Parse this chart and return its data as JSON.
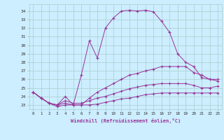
{
  "xlabel": "Windchill (Refroidissement éolien,°C)",
  "bg_color": "#cceeff",
  "grid_color": "#aacccc",
  "line_color": "#993399",
  "xlim": [
    -0.5,
    23.5
  ],
  "ylim": [
    22.5,
    34.8
  ],
  "xticks": [
    0,
    1,
    2,
    3,
    4,
    5,
    6,
    7,
    8,
    9,
    10,
    11,
    12,
    13,
    14,
    15,
    16,
    17,
    18,
    19,
    20,
    21,
    22,
    23
  ],
  "yticks": [
    23,
    24,
    25,
    26,
    27,
    28,
    29,
    30,
    31,
    32,
    33,
    34
  ],
  "series": [
    [
      24.5,
      23.8,
      23.2,
      22.8,
      23.0,
      23.0,
      26.5,
      30.5,
      28.5,
      32.0,
      33.2,
      34.0,
      34.1,
      34.0,
      34.1,
      33.9,
      32.8,
      31.5,
      29.0,
      28.0,
      27.5,
      26.2,
      26.0,
      26.0
    ],
    [
      24.5,
      23.8,
      23.2,
      23.0,
      24.0,
      23.0,
      23.0,
      23.8,
      24.5,
      25.0,
      25.5,
      26.0,
      26.5,
      26.7,
      27.0,
      27.2,
      27.5,
      27.5,
      27.5,
      27.5,
      26.8,
      26.5,
      26.0,
      25.8
    ],
    [
      24.5,
      23.8,
      23.2,
      23.0,
      23.5,
      23.2,
      23.2,
      23.5,
      23.8,
      24.0,
      24.3,
      24.6,
      24.9,
      25.1,
      25.3,
      25.4,
      25.5,
      25.5,
      25.5,
      25.5,
      25.3,
      25.0,
      25.0,
      25.2
    ],
    [
      24.5,
      23.8,
      23.2,
      23.0,
      23.2,
      23.0,
      23.0,
      23.0,
      23.1,
      23.3,
      23.5,
      23.7,
      23.8,
      24.0,
      24.2,
      24.3,
      24.4,
      24.4,
      24.4,
      24.4,
      24.4,
      24.4,
      24.4,
      24.4
    ]
  ]
}
